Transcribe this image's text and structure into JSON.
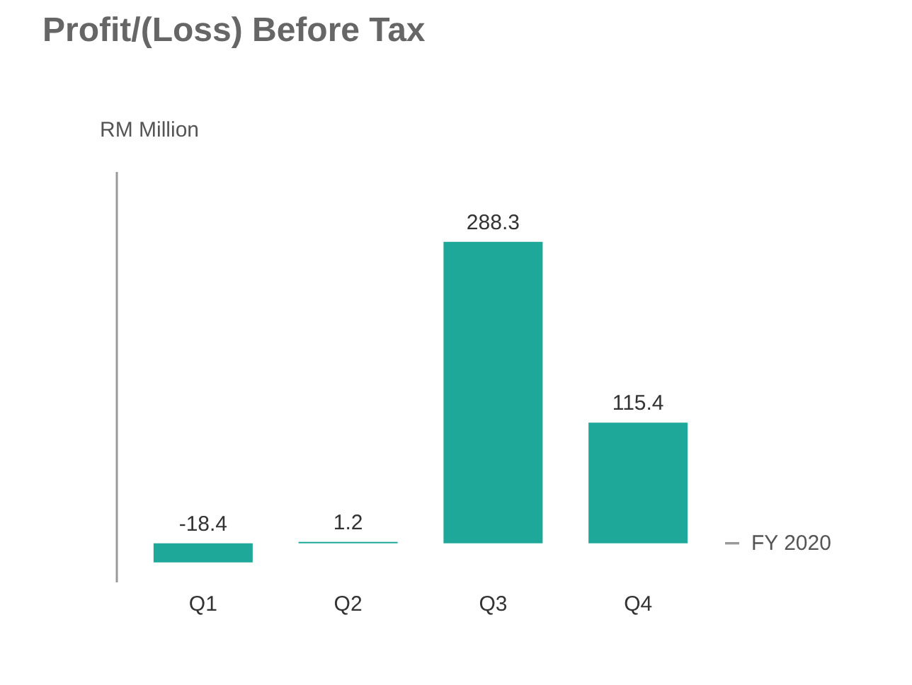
{
  "chart_data": {
    "type": "bar",
    "title": "Profit/(Loss) Before Tax",
    "ylabel": "RM Million",
    "xlabel": "FY 2020",
    "categories": [
      "Q1",
      "Q2",
      "Q3",
      "Q4"
    ],
    "values": [
      -18.4,
      1.2,
      288.3,
      115.4
    ],
    "color": "#1ea89a",
    "data_labels": true
  }
}
